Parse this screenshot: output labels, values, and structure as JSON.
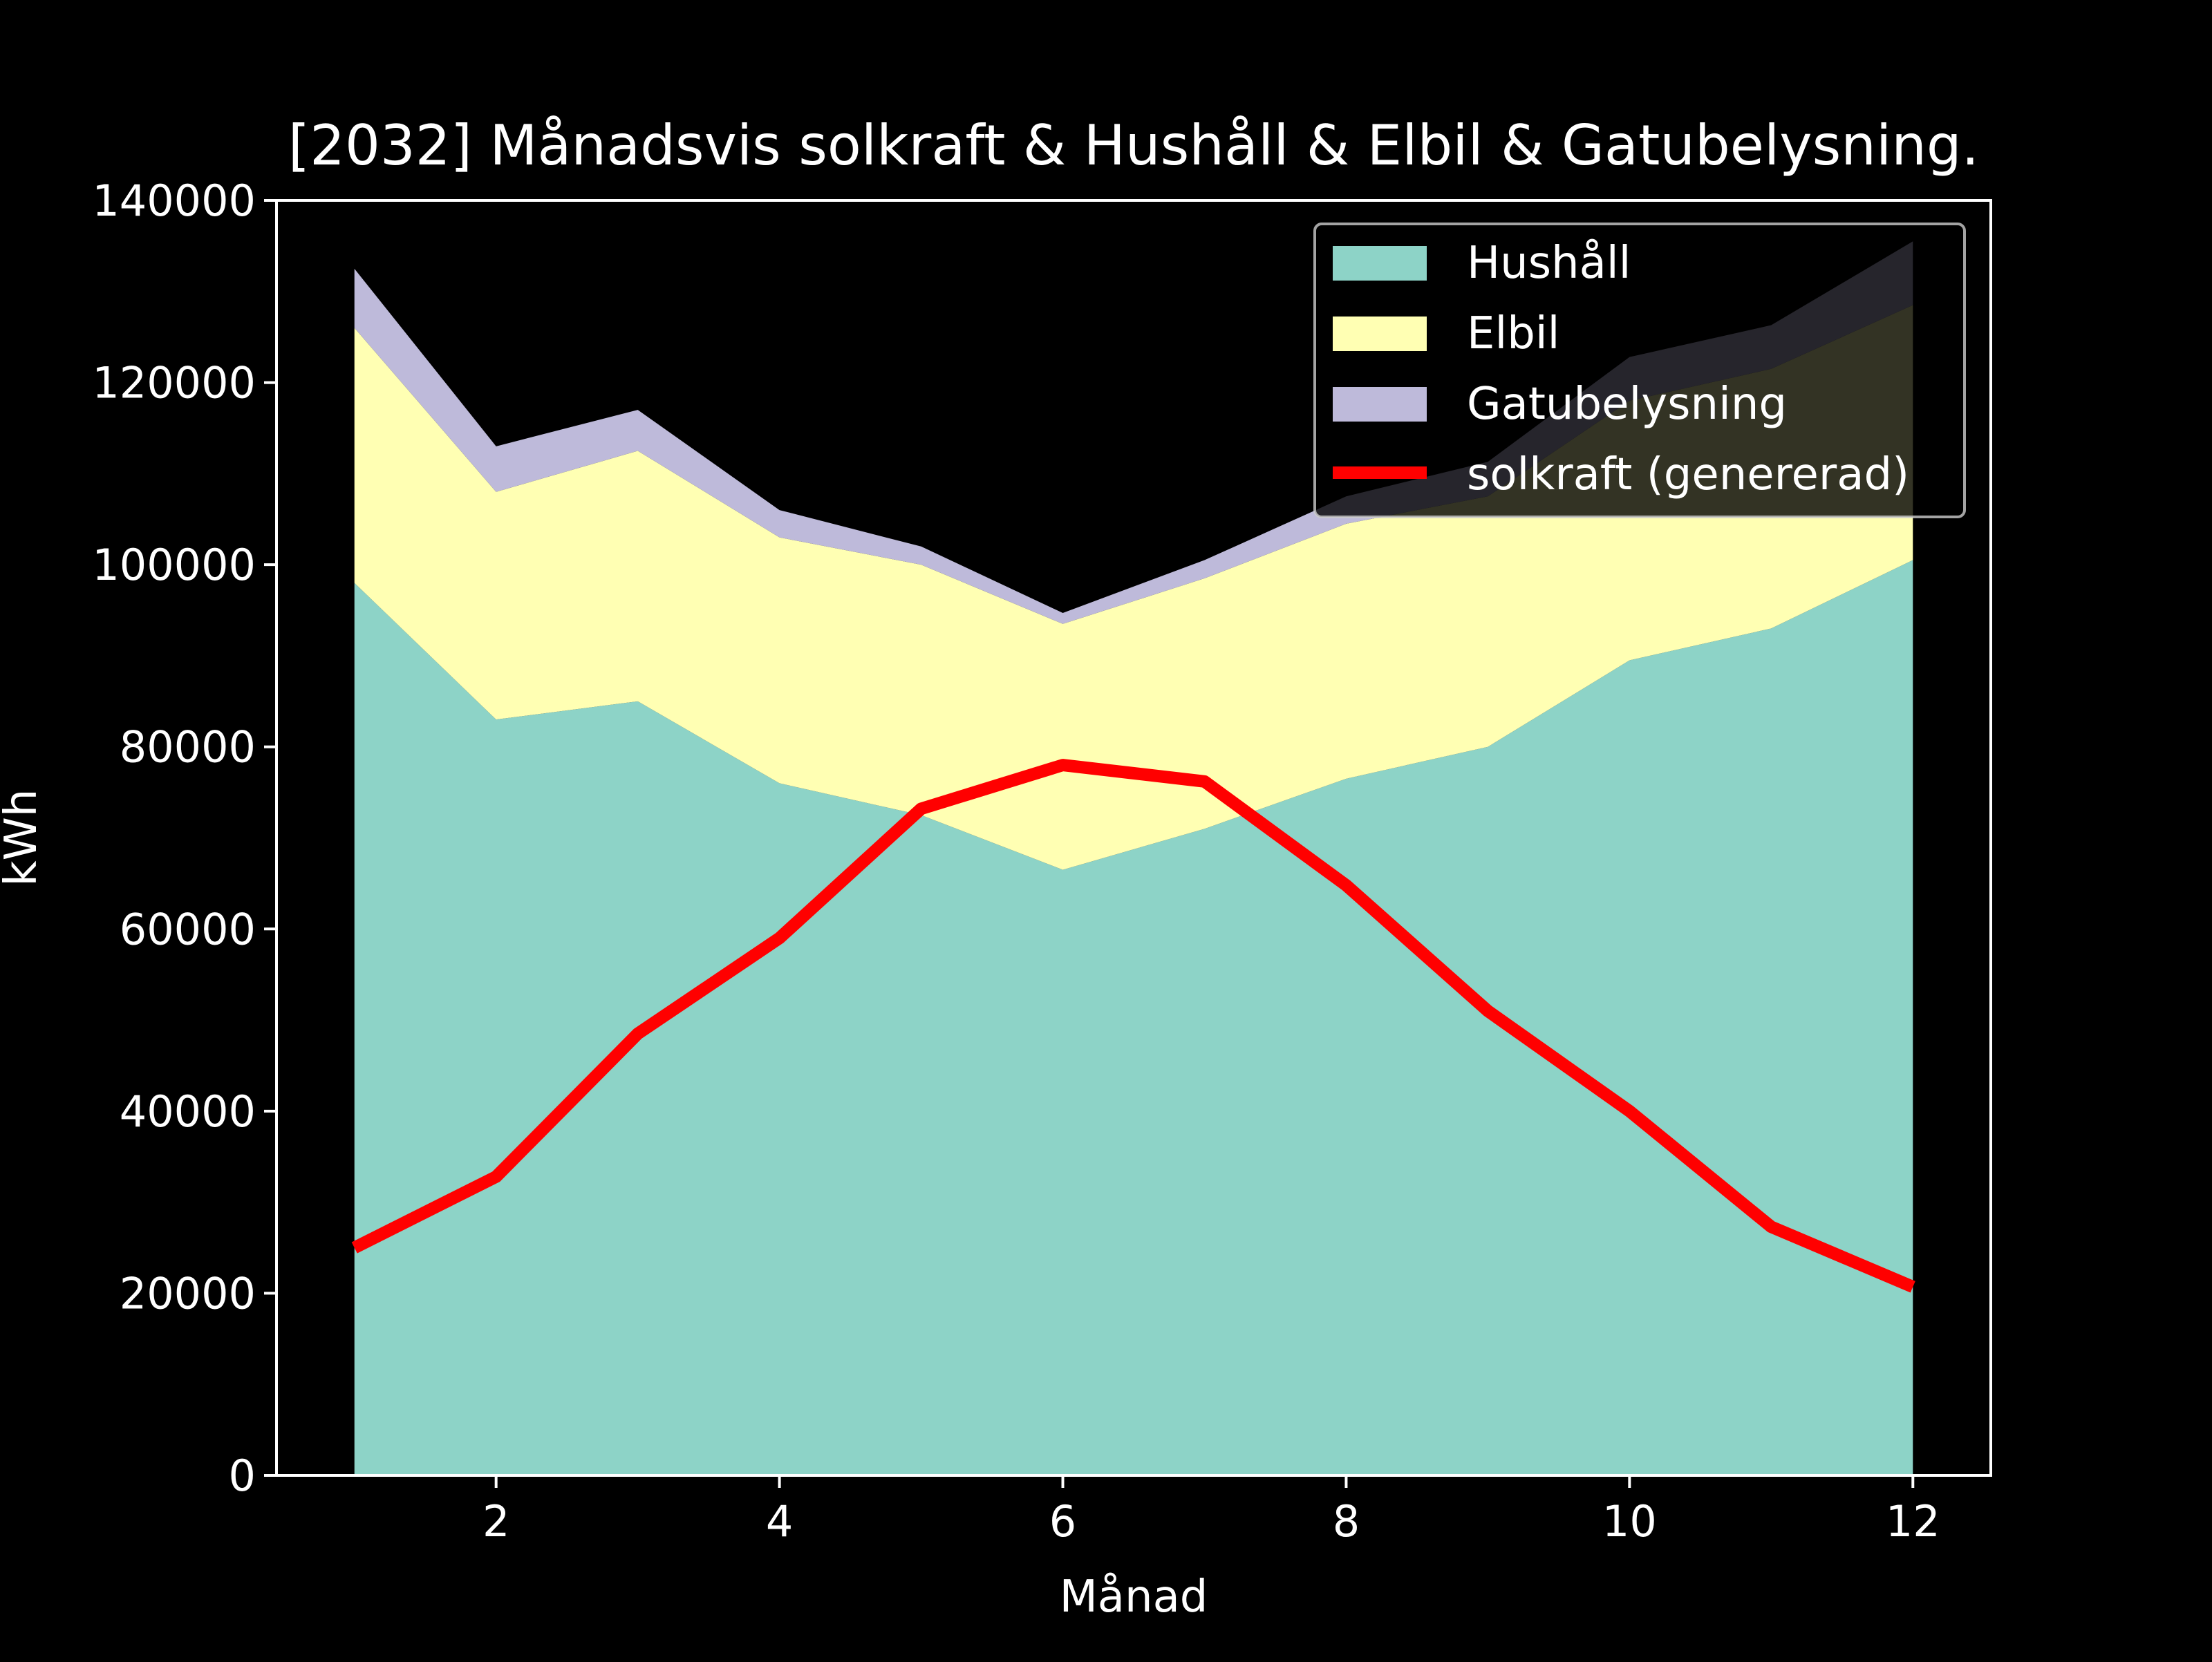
{
  "chart_data": {
    "type": "area",
    "title": "[2032] Månadsvis solkraft & Hushåll & Elbil & Gatubelysning.",
    "xlabel": "Månad",
    "ylabel": "kWh",
    "x": [
      1,
      2,
      3,
      4,
      5,
      6,
      7,
      8,
      9,
      10,
      11,
      12
    ],
    "xlim": [
      0.45,
      12.55
    ],
    "ylim": [
      0,
      140000
    ],
    "xticks": [
      2,
      4,
      6,
      8,
      10,
      12
    ],
    "yticks": [
      0,
      20000,
      40000,
      60000,
      80000,
      100000,
      120000,
      140000
    ],
    "grid": false,
    "legend_position": "top-right",
    "stacked_series": [
      {
        "name": "Hushåll",
        "color": "#8dd3c7",
        "values": [
          98000,
          83000,
          85000,
          76000,
          72500,
          66500,
          71000,
          76500,
          80000,
          89500,
          93000,
          100500
        ]
      },
      {
        "name": "Elbil",
        "color": "#ffffb3",
        "values": [
          28000,
          25000,
          27500,
          27000,
          27500,
          27000,
          27500,
          28000,
          27500,
          28500,
          28500,
          28000
        ]
      },
      {
        "name": "Gatubelysning",
        "color": "#bebada",
        "values": [
          6500,
          5000,
          4500,
          3000,
          2000,
          1200,
          2000,
          3000,
          3800,
          4800,
          4800,
          7000
        ]
      }
    ],
    "line_series": [
      {
        "name": "solkraft (genererad)",
        "color": "#ff0000",
        "values": [
          25000,
          32800,
          48500,
          59000,
          73200,
          78000,
          76200,
          64800,
          51000,
          40000,
          27300,
          20700
        ]
      }
    ]
  }
}
